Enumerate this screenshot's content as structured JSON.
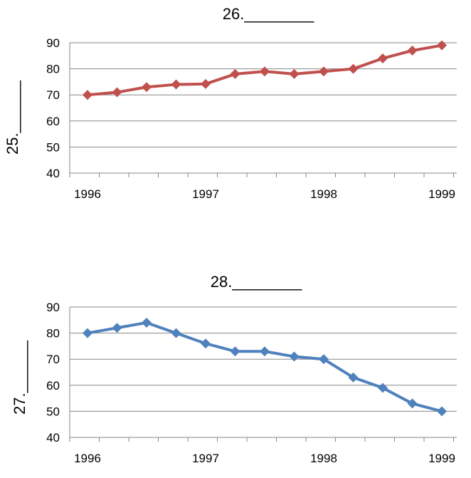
{
  "chart_data": [
    {
      "type": "line",
      "title": "26.________",
      "ylabel": "25.______",
      "xlabel": "",
      "x_tick_labels": [
        "1996",
        "1997",
        "1998",
        "1999"
      ],
      "y_tick_labels": [
        "40",
        "50",
        "60",
        "70",
        "80",
        "90"
      ],
      "ylim": [
        40,
        90
      ],
      "xlim": [
        1996,
        1999
      ],
      "grid": true,
      "colors": {
        "line": "#c0504d",
        "marker": "#c0504d"
      },
      "series": [
        {
          "x": [
            1996,
            1996.25,
            1996.5,
            1996.75,
            1997,
            1997.25,
            1997.5,
            1997.75,
            1998,
            1998.25,
            1998.5,
            1998.75,
            1999
          ],
          "values": [
            70,
            71,
            73,
            74,
            74.2,
            78,
            79,
            78,
            79,
            80,
            84,
            87,
            89
          ]
        }
      ]
    },
    {
      "type": "line",
      "title": "28.________",
      "ylabel": "27.______",
      "xlabel": "",
      "x_tick_labels": [
        "1996",
        "1997",
        "1998",
        "1999"
      ],
      "y_tick_labels": [
        "40",
        "50",
        "60",
        "70",
        "80",
        "90"
      ],
      "ylim": [
        40,
        90
      ],
      "xlim": [
        1996,
        1999
      ],
      "grid": true,
      "colors": {
        "line": "#4f81bd",
        "marker": "#4f81bd"
      },
      "series": [
        {
          "x": [
            1996,
            1996.25,
            1996.5,
            1996.75,
            1997,
            1997.25,
            1997.5,
            1997.75,
            1998,
            1998.25,
            1998.5,
            1998.75,
            1999
          ],
          "values": [
            80,
            82,
            84,
            80,
            76,
            73,
            73,
            71,
            70,
            63,
            59,
            53,
            50
          ]
        }
      ]
    }
  ]
}
